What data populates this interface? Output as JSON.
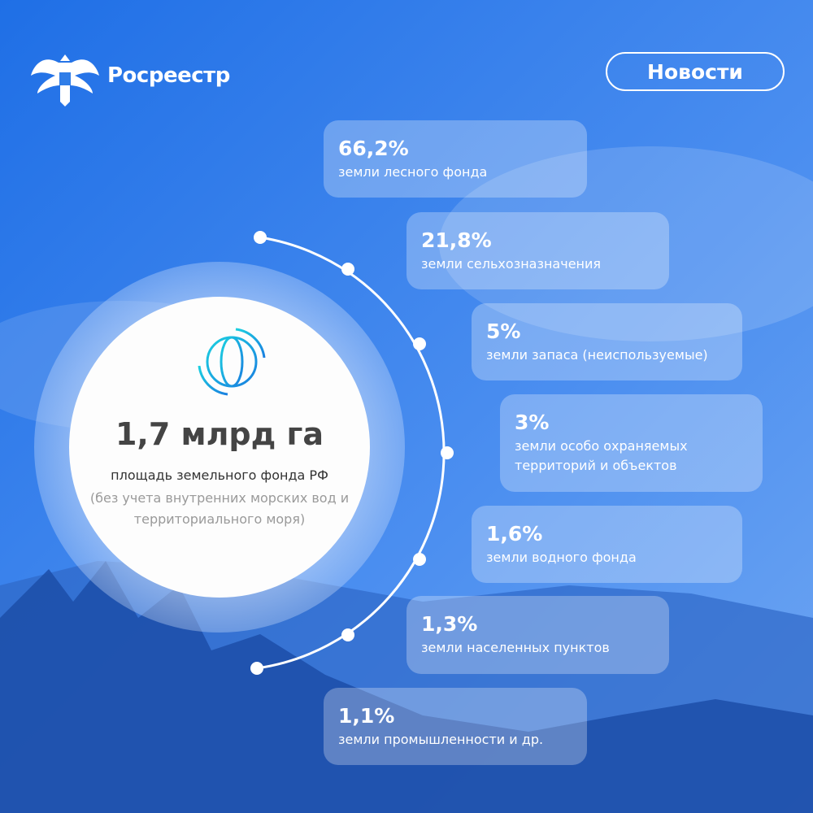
{
  "header": {
    "brand": "Росреестр",
    "button": "Новости"
  },
  "center": {
    "value": "1,7 млрд га",
    "caption": "площадь земельного фонда РФ",
    "note": "(без учета внутренних морских вод и территориального моря)"
  },
  "items": [
    {
      "value": "66,2%",
      "label": "земли лесного фонда"
    },
    {
      "value": "21,8%",
      "label": "земли сельхозназначения"
    },
    {
      "value": "5%",
      "label": "земли запаса (неиспользуемые)"
    },
    {
      "value": "3%",
      "label": "земли особо охраняемых территорий и объектов"
    },
    {
      "value": "1,6%",
      "label": "земли водного фонда"
    },
    {
      "value": "1,3%",
      "label": "земли населенных пунктов"
    },
    {
      "value": "1,1%",
      "label": "земли промышленности и др."
    }
  ]
}
